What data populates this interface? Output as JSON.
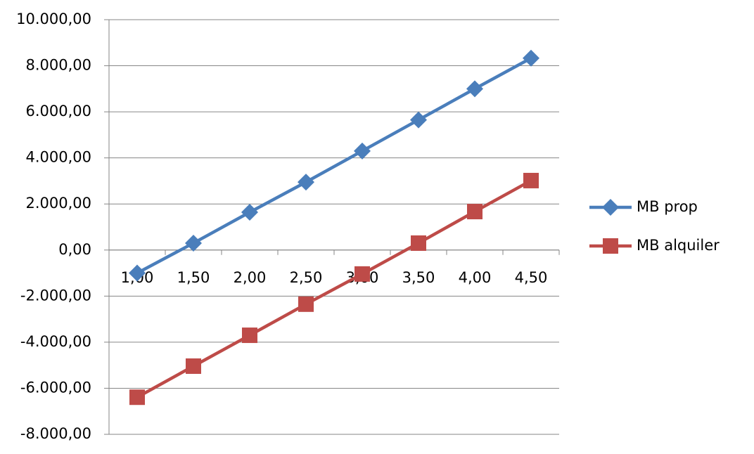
{
  "chart_data": {
    "type": "line",
    "categories": [
      "1,00",
      "1,50",
      "2,00",
      "2,50",
      "3,00",
      "3,50",
      "4,00",
      "4,50"
    ],
    "series": [
      {
        "name": "MB prop",
        "color": "#4a7ebb",
        "marker": "diamond",
        "values": [
          -1000,
          300,
          1640,
          2950,
          4300,
          5650,
          7000,
          8330
        ]
      },
      {
        "name": "MB alquiler",
        "color": "#be4b48",
        "marker": "square",
        "values": [
          -6390,
          -5040,
          -3700,
          -2350,
          -1040,
          300,
          1670,
          3015
        ]
      }
    ],
    "ylim": [
      -8000,
      10000
    ],
    "yticks": [
      {
        "value": -8000,
        "label": "-8.000,00"
      },
      {
        "value": -6000,
        "label": "-6.000,00"
      },
      {
        "value": -4000,
        "label": "-4.000,00"
      },
      {
        "value": -2000,
        "label": "-2.000,00"
      },
      {
        "value": 0,
        "label": "0,00"
      },
      {
        "value": 2000,
        "label": "2.000,00"
      },
      {
        "value": 4000,
        "label": "4.000,00"
      },
      {
        "value": 6000,
        "label": "6.000,00"
      },
      {
        "value": 8000,
        "label": "8.000,00"
      },
      {
        "value": 10000,
        "label": "10.000,00"
      }
    ],
    "grid": true,
    "legend": "right"
  }
}
